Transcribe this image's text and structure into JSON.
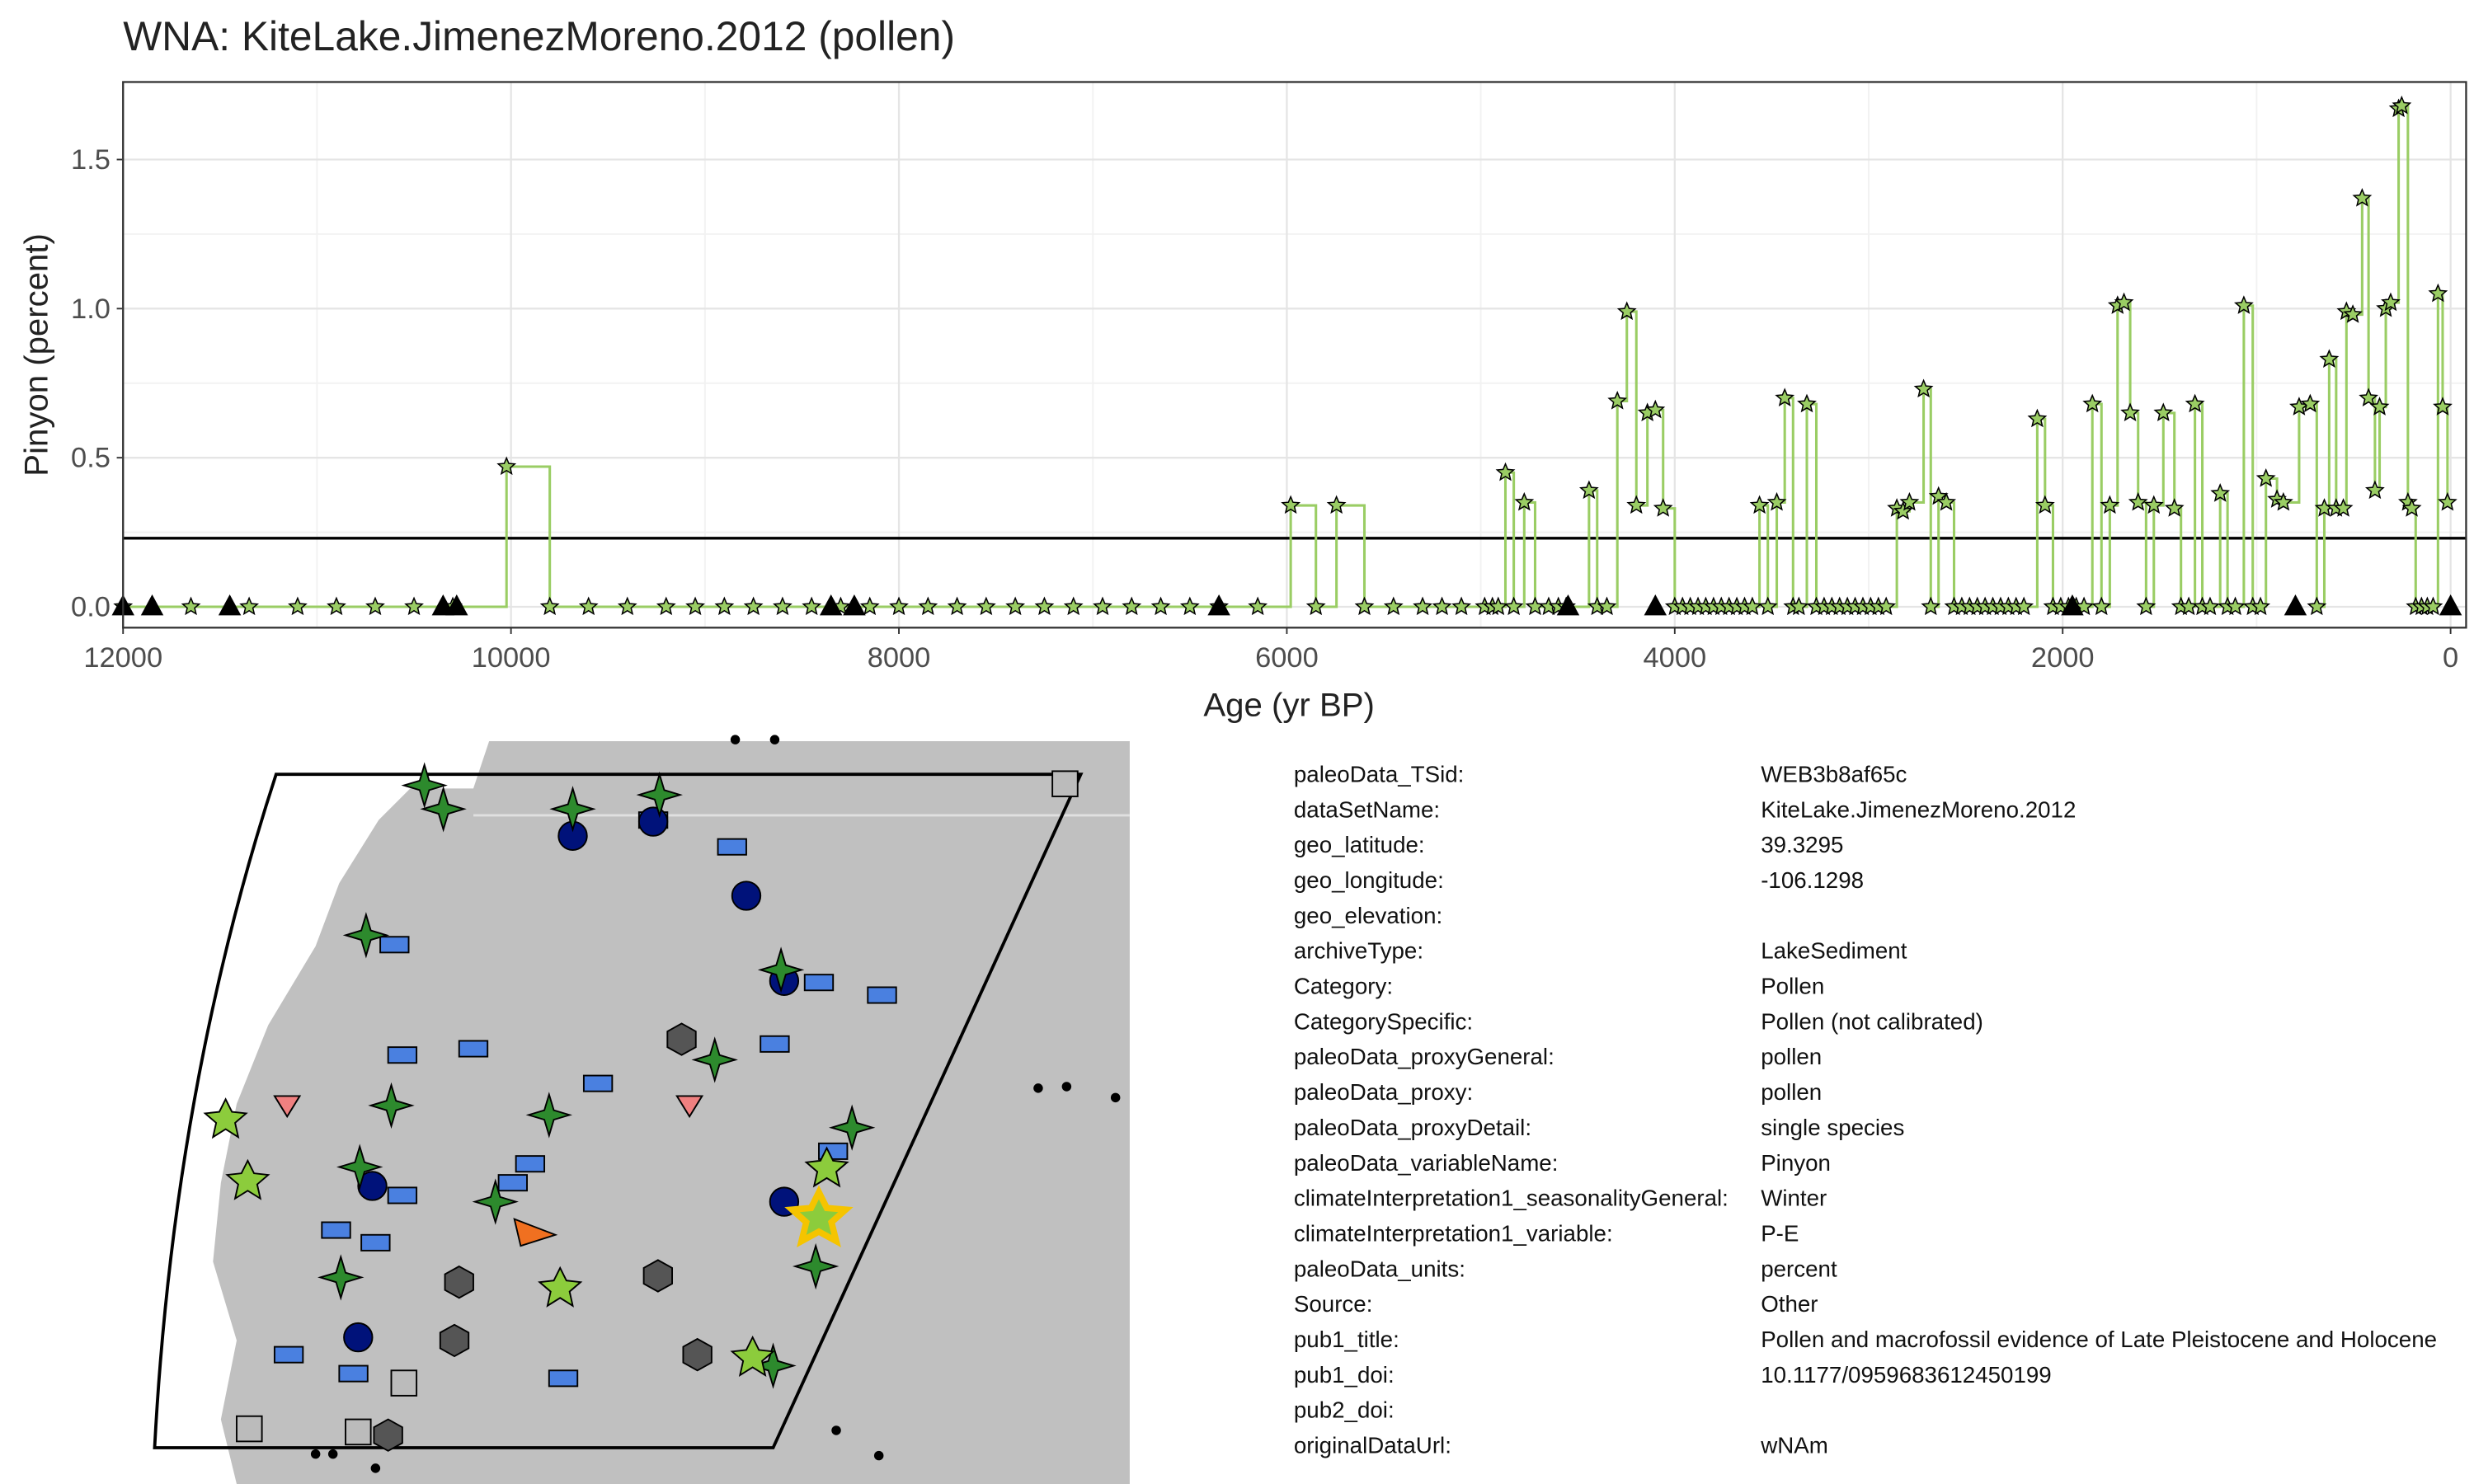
{
  "chart_data": {
    "type": "step",
    "title": "WNA: KiteLake.JimenezMoreno.2012 (pollen)",
    "x_label": "Age (yr BP)",
    "y_label": "Pinyon (percent)",
    "xlim": [
      12000,
      -80
    ],
    "xticks": [
      12000,
      10000,
      8000,
      6000,
      4000,
      2000,
      0
    ],
    "ylim": [
      -0.07,
      1.76
    ],
    "yticks": [
      {
        "value": 0,
        "label": "0.0"
      },
      0.5,
      {
        "value": 1,
        "label": "1.0"
      },
      1.5
    ],
    "grid": true,
    "hline": 0.23,
    "series": [
      {
        "color": "#9acd64",
        "marker": "star",
        "x": [
          12000,
          11650,
          11350,
          11100,
          10900,
          10700,
          10500,
          10300,
          10023,
          9800,
          9600,
          9400,
          9200,
          9050,
          8900,
          8750,
          8600,
          8450,
          8300,
          8150,
          8000,
          7850,
          7700,
          7550,
          7400,
          7250,
          7100,
          6950,
          6800,
          6650,
          6500,
          6350,
          6150,
          5980,
          5850,
          5744,
          5600,
          5450,
          5300,
          5200,
          5100,
          4980,
          4940,
          4910,
          4873,
          4830,
          4776,
          4720,
          4650,
          4600,
          4560,
          4442,
          4400,
          4350,
          4296,
          4247,
          4198,
          4141,
          4100,
          4060,
          4000,
          3960,
          3920,
          3880,
          3840,
          3800,
          3760,
          3720,
          3680,
          3640,
          3600,
          3563,
          3520,
          3474,
          3433,
          3390,
          3360,
          3319,
          3270,
          3230,
          3190,
          3150,
          3110,
          3070,
          3030,
          2990,
          2950,
          2910,
          2855,
          2823,
          2790,
          2717,
          2680,
          2640,
          2600,
          2560,
          2520,
          2480,
          2440,
          2400,
          2360,
          2320,
          2280,
          2240,
          2200,
          2131,
          2091,
          2050,
          2010,
          1970,
          1930,
          1890,
          1847,
          1800,
          1757,
          1717,
          1684,
          1652,
          1611,
          1570,
          1530,
          1481,
          1424,
          1390,
          1350,
          1318,
          1280,
          1240,
          1188,
          1150,
          1110,
          1066,
          1020,
          980,
          952,
          895,
          862,
          781,
          724,
          690,
          651,
          626,
          590,
          553,
          537,
          504,
          456,
          423,
          390,
          366,
          334,
          309,
          268,
          252,
          220,
          200,
          180,
          150,
          120,
          90,
          65,
          41,
          16
        ],
        "values": [
          0,
          0,
          0,
          0,
          0,
          0,
          0,
          0,
          0.47,
          0,
          0,
          0,
          0,
          0,
          0,
          0,
          0,
          0,
          0,
          0,
          0,
          0,
          0,
          0,
          0,
          0,
          0,
          0,
          0,
          0,
          0,
          0,
          0,
          0.34,
          0,
          0.34,
          0,
          0,
          0,
          0,
          0,
          0,
          0,
          0,
          0.45,
          0,
          0.35,
          0,
          0,
          0,
          0,
          0.39,
          0,
          0,
          0.69,
          0.99,
          0.34,
          0.65,
          0.66,
          0.33,
          0,
          0,
          0,
          0,
          0,
          0,
          0,
          0,
          0,
          0,
          0,
          0.34,
          0,
          0.35,
          0.7,
          0,
          0,
          0.68,
          0,
          0,
          0,
          0,
          0,
          0,
          0,
          0,
          0,
          0,
          0.33,
          0.32,
          0.35,
          0.73,
          0,
          0.37,
          0.35,
          0,
          0,
          0,
          0,
          0,
          0,
          0,
          0,
          0,
          0,
          0.63,
          0.34,
          0,
          0,
          0,
          0,
          0,
          0.68,
          0,
          0.34,
          1.01,
          1.02,
          0.65,
          0.35,
          0,
          0.34,
          0.65,
          0.33,
          0,
          0,
          0.68,
          0,
          0,
          0.38,
          0,
          0,
          1.01,
          0,
          0,
          0.43,
          0.36,
          0.35,
          0.67,
          0.68,
          0,
          0.33,
          0.83,
          0.33,
          0.33,
          0.99,
          0.98,
          1.37,
          0.7,
          0.39,
          0.67,
          1.0,
          1.02,
          1.67,
          1.68,
          0.35,
          0.33,
          0,
          0,
          0,
          0,
          1.05,
          0.67,
          0.35
        ]
      },
      {
        "color": "#000000",
        "marker": "triangle",
        "x": [
          12000,
          11850,
          11450,
          10350,
          10280,
          8350,
          8230,
          6350,
          4550,
          4100,
          1950,
          800,
          0
        ],
        "values": [
          0,
          0,
          0,
          0,
          0,
          0,
          0,
          0,
          0,
          0,
          0,
          0,
          0
        ]
      }
    ]
  },
  "metadata": {
    "rows": [
      [
        "paleoData_TSid:",
        "WEB3b8af65c"
      ],
      [
        "dataSetName:",
        "KiteLake.JimenezMoreno.2012"
      ],
      [
        "geo_latitude:",
        "39.3295"
      ],
      [
        "geo_longitude:",
        "-106.1298"
      ],
      [
        "geo_elevation:"
      ],
      [
        "archiveType:",
        "LakeSediment"
      ],
      [
        "Category:",
        "Pollen"
      ],
      [
        "CategorySpecific:",
        "Pollen (not calibrated)"
      ],
      [
        "paleoData_proxyGeneral:",
        "pollen"
      ],
      [
        "paleoData_proxy:",
        "pollen"
      ],
      [
        "paleoData_proxyDetail:",
        "single species"
      ],
      [
        "paleoData_variableName:",
        "Pinyon"
      ],
      [
        "climateInterpretation1_seasonalityGeneral:",
        "Winter"
      ],
      [
        "climateInterpretation1_variable:",
        "P-E"
      ],
      [
        "paleoData_units:",
        "percent"
      ],
      [
        "Source:",
        "Other"
      ],
      [
        "pub1_title:",
        "Pollen and macrofossil evidence of Late Pleistocene and Holocene"
      ],
      [
        "pub1_doi:",
        "10.1177/0959683612450199"
      ],
      [
        "pub2_doi:"
      ],
      [
        "originalDataUrl:",
        "wNAm"
      ]
    ]
  }
}
